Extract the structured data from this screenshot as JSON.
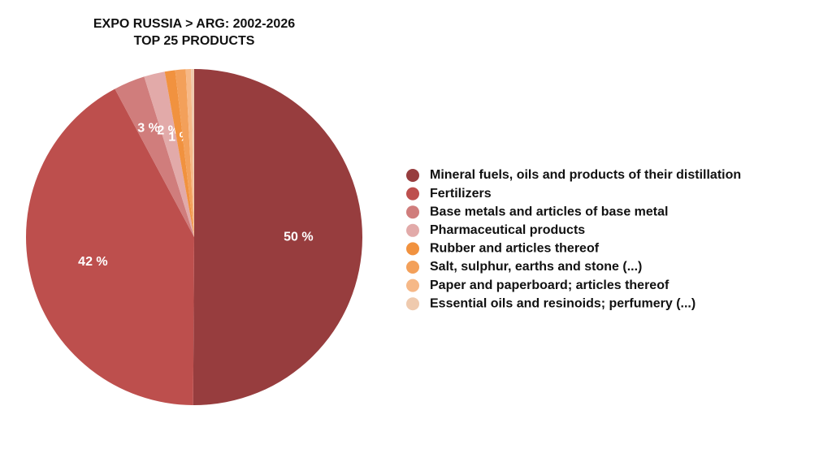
{
  "chart_data": {
    "type": "pie",
    "title": "EXPO RUSSIA > ARG: 2002-2026",
    "subtitle": "TOP 25 PRODUCTS",
    "categories": [
      "Mineral fuels, oils and products of their distillation",
      "Fertilizers",
      "Base metals and articles of base metal",
      "Pharmaceutical products",
      "Rubber and articles thereof",
      "Salt, sulphur, earths and stone (...)",
      "Paper and paperboard; articles thereof",
      "Essential oils and resinoids; perfumery (...)"
    ],
    "values": [
      50,
      42,
      3,
      2,
      1,
      1,
      0.5,
      0.3
    ],
    "value_labels": [
      "50 %",
      "42 %",
      "3 %",
      "2 %",
      "1 %",
      null,
      null,
      null
    ],
    "colors": [
      "#973d3e",
      "#bd4f4d",
      "#d07d7c",
      "#e2aaa9",
      "#f1923f",
      "#f3a05a",
      "#f6b887",
      "#efcaae"
    ],
    "legend": "right"
  }
}
